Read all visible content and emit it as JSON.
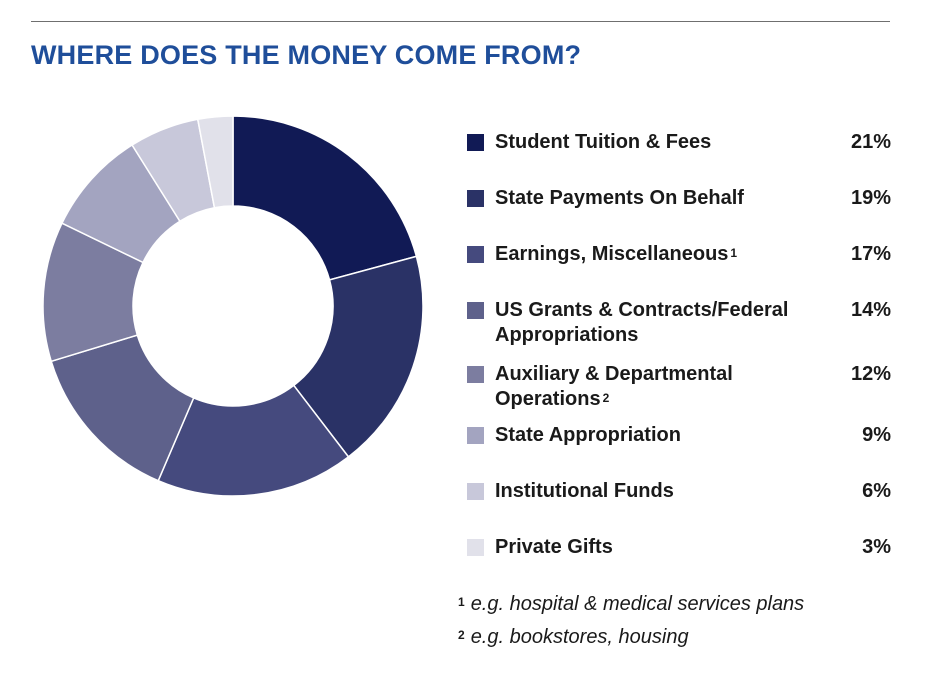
{
  "header": {
    "title": "WHERE DOES THE MONEY COME FROM?"
  },
  "colors": {
    "title": "#1f4e9a",
    "slices": [
      "#111a55",
      "#2a3266",
      "#454a7e",
      "#5e618b",
      "#7c7da0",
      "#a3a4c0",
      "#c8c8da",
      "#e1e1ea"
    ]
  },
  "chart_data": {
    "type": "pie",
    "variant": "donut",
    "title": "WHERE DOES THE MONEY COME FROM?",
    "unit": "%",
    "categories": [
      "Student Tuition & Fees",
      "State Payments On Behalf",
      "Earnings, Miscellaneous",
      "US Grants & Contracts/Federal Appropriations",
      "Auxiliary & Departmental Operations",
      "State Appropriation",
      "Institutional Funds",
      "Private Gifts"
    ],
    "values": [
      21,
      19,
      17,
      14,
      12,
      9,
      6,
      3
    ],
    "legend_position": "right"
  },
  "legend": {
    "items": [
      {
        "label": "Student Tuition & Fees",
        "sup": "",
        "value": "21%"
      },
      {
        "label": "State Payments On Behalf",
        "sup": "",
        "value": "19%"
      },
      {
        "label": "Earnings, Miscellaneous",
        "sup": "1",
        "value": "17%"
      },
      {
        "label": "US Grants & Contracts/Federal Appropriations",
        "sup": "",
        "value": "14%"
      },
      {
        "label": "Auxiliary & Departmental Operations",
        "sup": "2",
        "value": "12%"
      },
      {
        "label": "State Appropriation",
        "sup": "",
        "value": "9%"
      },
      {
        "label": "Institutional Funds",
        "sup": "",
        "value": "6%"
      },
      {
        "label": "Private Gifts",
        "sup": "",
        "value": "3%"
      }
    ]
  },
  "footnotes": [
    {
      "mark": "1",
      "text": "e.g. hospital & medical services plans"
    },
    {
      "mark": "2",
      "text": "e.g. bookstores, housing"
    }
  ]
}
